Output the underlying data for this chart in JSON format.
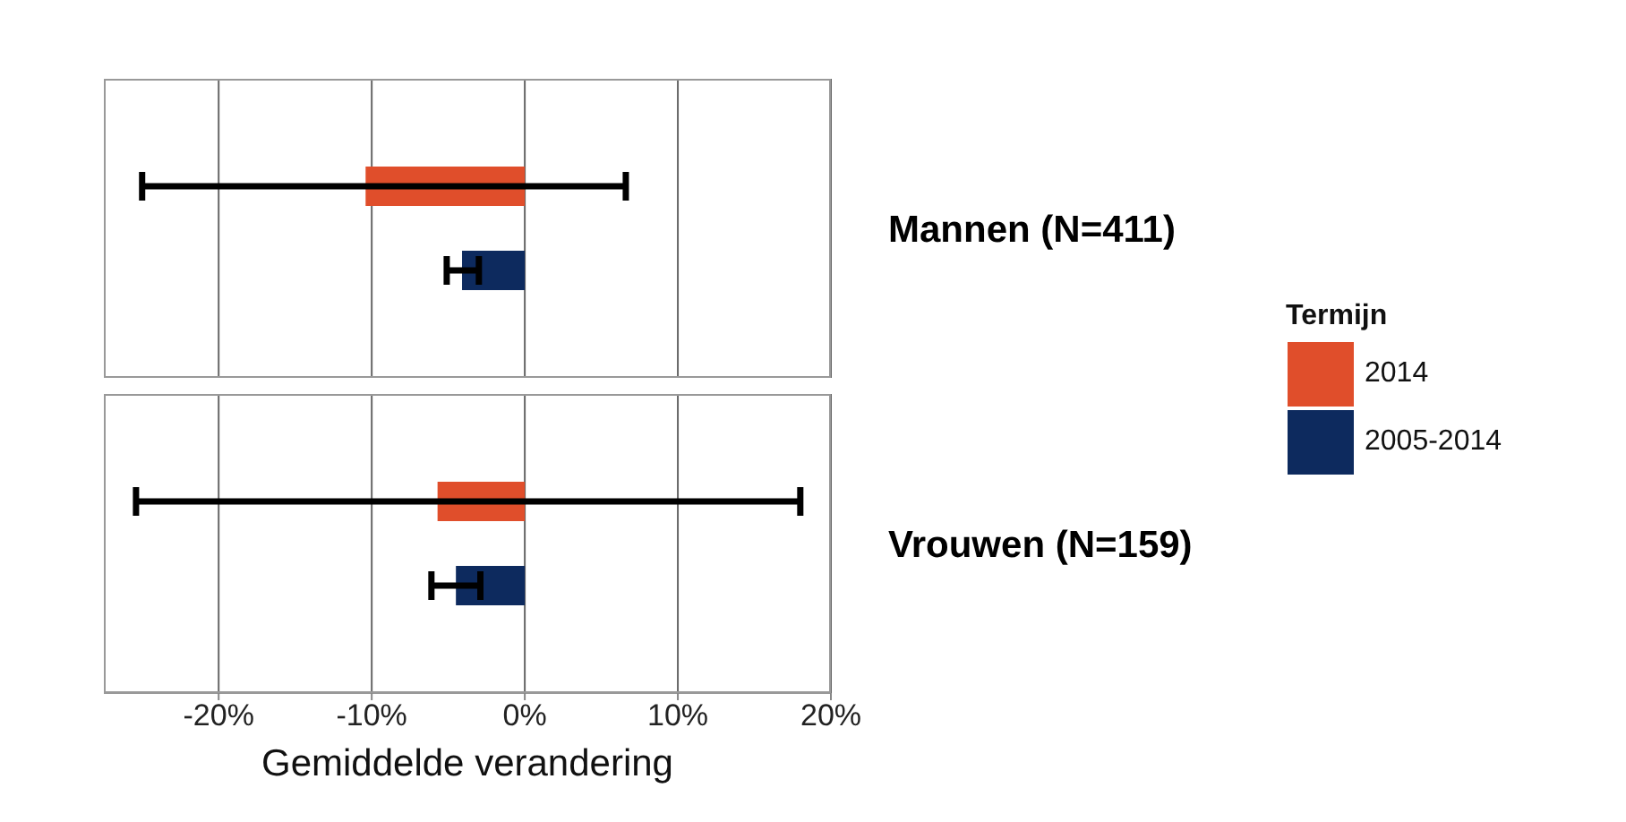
{
  "chart_data": [
    {
      "type": "bar",
      "orientation": "horizontal",
      "categories": [
        "Mannen (N=411)"
      ],
      "series": [
        {
          "name": "2014",
          "color": "#e04e2b",
          "values": [
            -10.4
          ],
          "errors": [
            [
              -25.0,
              6.6
            ]
          ]
        },
        {
          "name": "2005-2014",
          "color": "#0d2a5e",
          "values": [
            -4.1
          ],
          "errors": [
            [
              -5.1,
              -3.0
            ]
          ]
        }
      ],
      "xlim": [
        -27.5,
        20
      ],
      "xticks": [
        -20,
        -10,
        0,
        10,
        20
      ],
      "tick_labels": "y",
      "grid": "x",
      "legend": "right",
      "legend_title": "Termijn"
    },
    {
      "type": "bar",
      "orientation": "horizontal",
      "xlabel": "Gemiddelde verandering",
      "categories": [
        "Vrouwen (N=159)"
      ],
      "series": [
        {
          "color": "#e04e2b",
          "values": [
            -5.7
          ],
          "errors": [
            [
              -25.4,
              18.0
            ]
          ]
        },
        {
          "color": "#0d2a5e",
          "values": [
            -4.5
          ],
          "errors": [
            [
              -6.1,
              -2.9
            ]
          ]
        }
      ],
      "xlim": [
        -27.5,
        20
      ],
      "xticks": [
        {
          "value": -20,
          "label": "-20%"
        },
        {
          "value": -10,
          "label": "-10%"
        },
        {
          "value": 0,
          "label": "0%"
        },
        {
          "value": 10,
          "label": "10%"
        },
        {
          "value": 20,
          "label": "20%"
        }
      ],
      "grid": "x"
    }
  ]
}
